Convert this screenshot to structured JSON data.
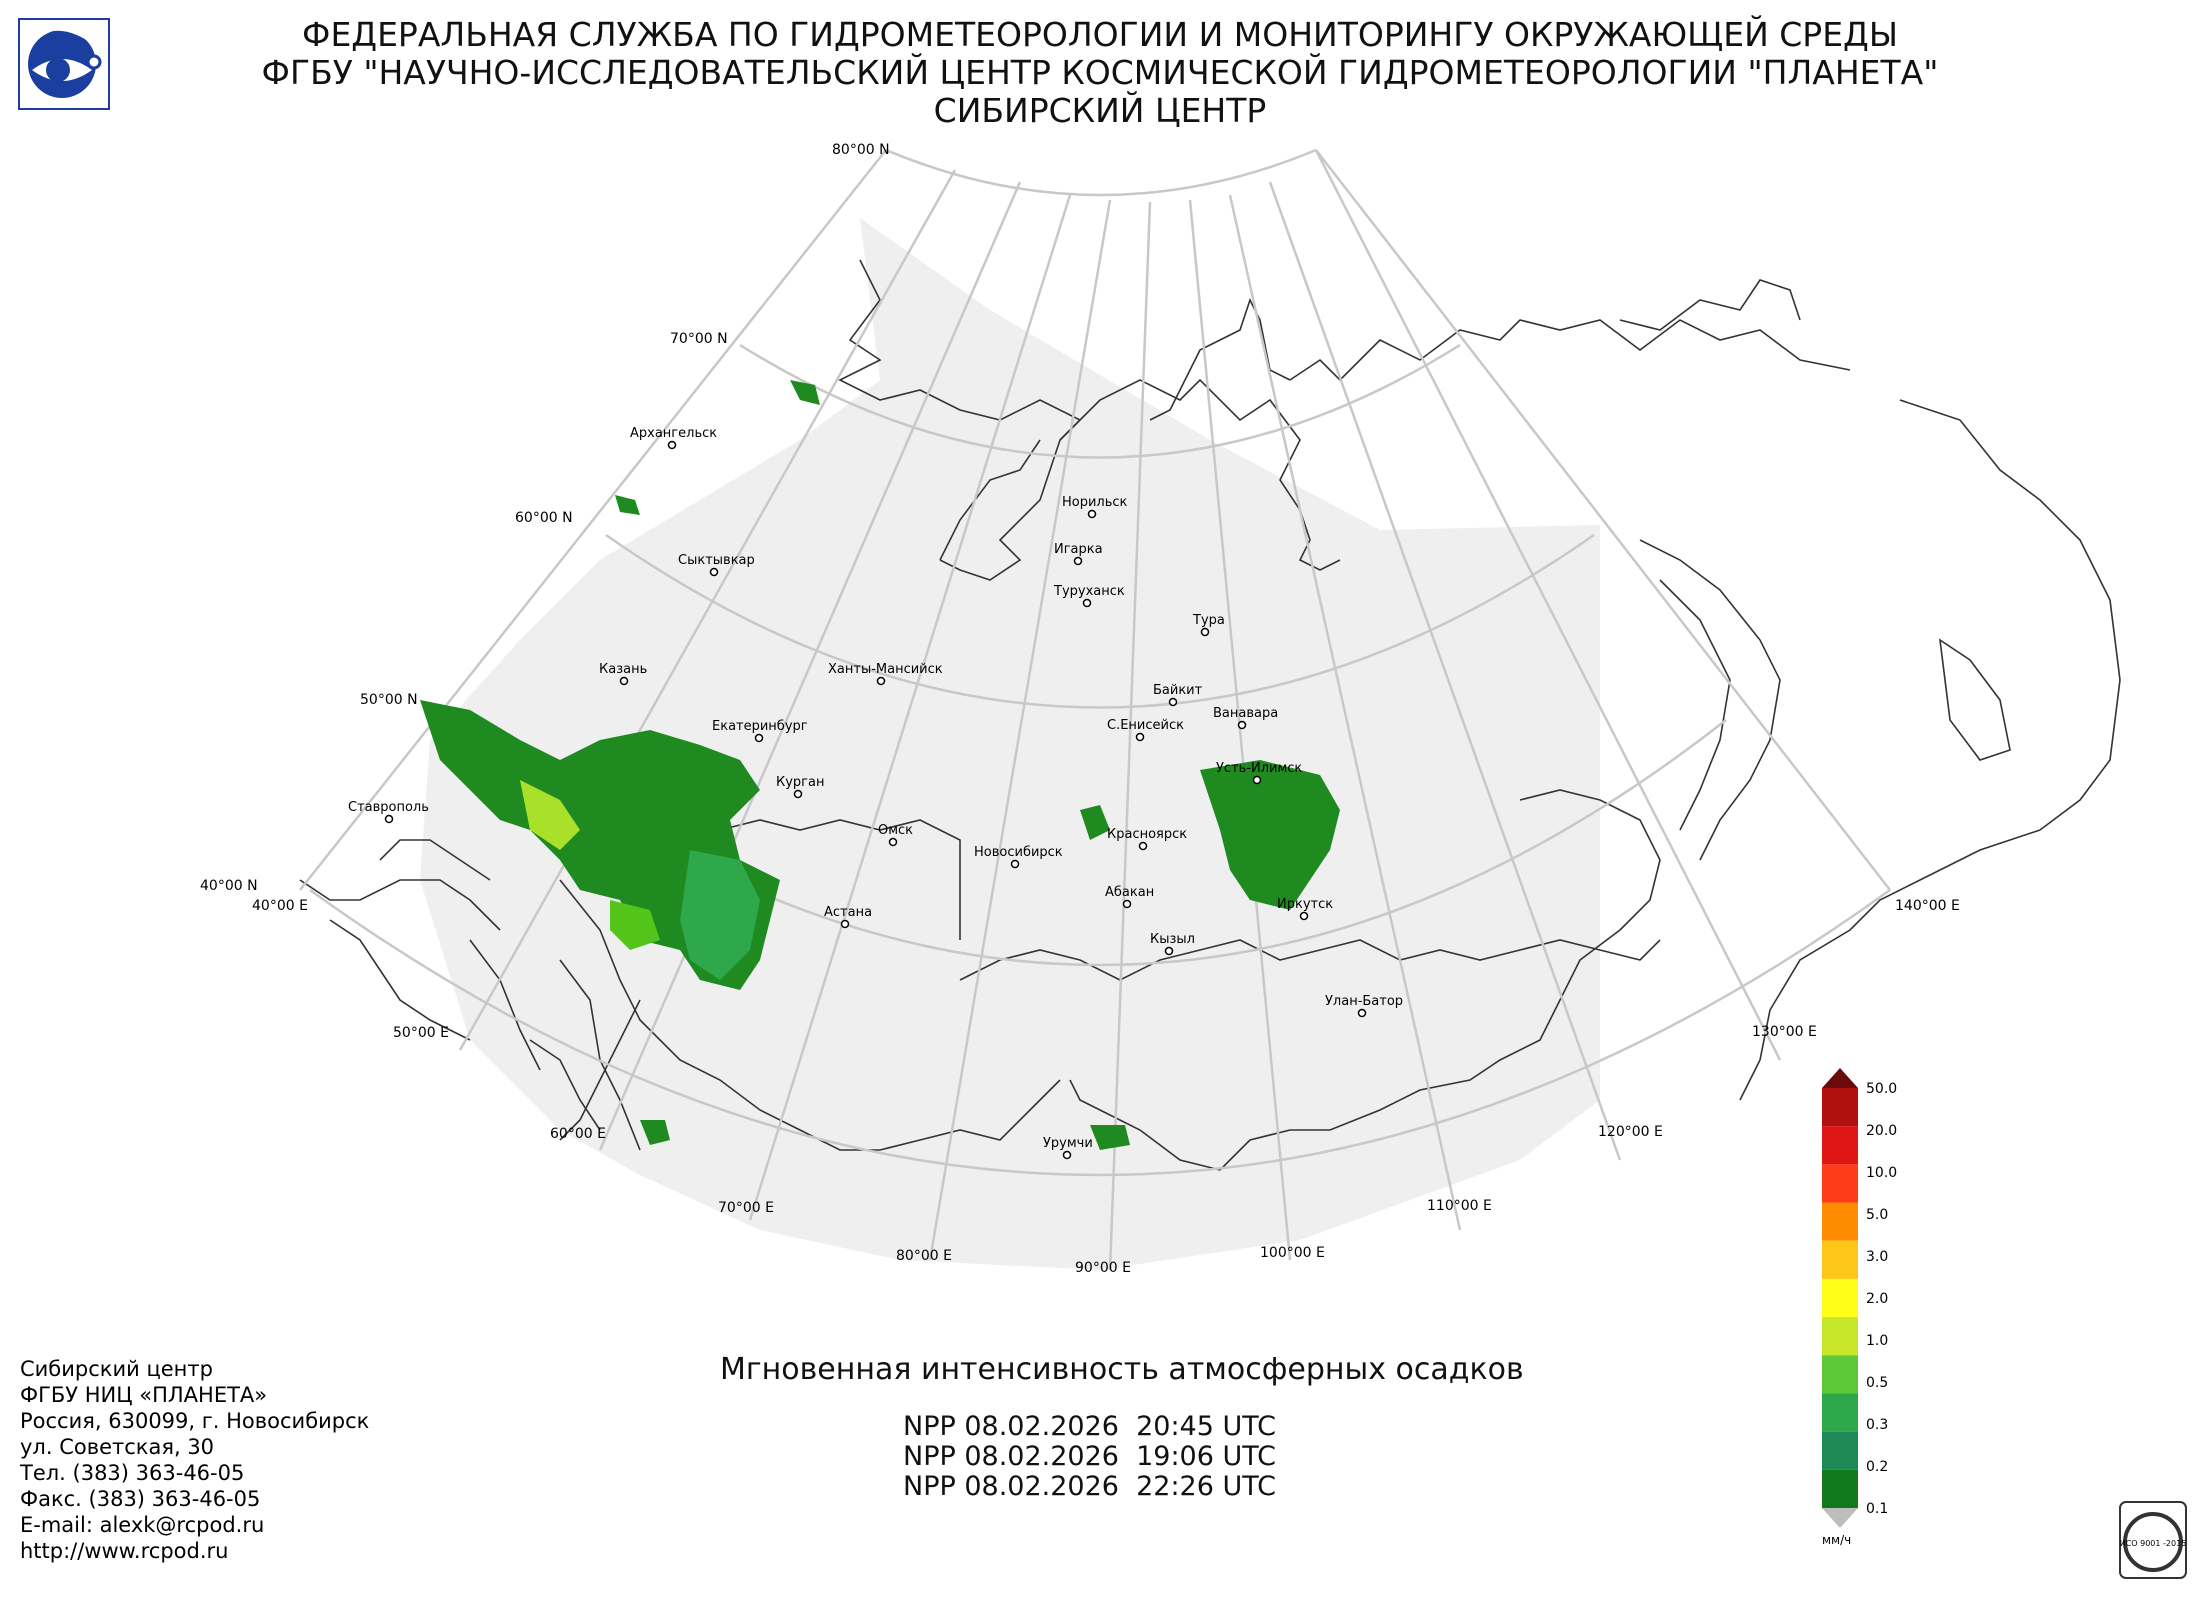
{
  "header": {
    "line1": "ФЕДЕРАЛЬНАЯ СЛУЖБА ПО ГИДРОМЕТЕОРОЛОГИИ И МОНИТОРИНГУ ОКРУЖАЮЩЕЙ СРЕДЫ",
    "line2": "ФГБУ \"НАУЧНО-ИССЛЕДОВАТЕЛЬСКИЙ ЦЕНТР КОСМИЧЕСКОЙ ГИДРОМЕТЕОРОЛОГИИ \"ПЛАНЕТА\"",
    "line3": "СИБИРСКИЙ ЦЕНТР"
  },
  "map": {
    "lat_labels": [
      "80°00 N",
      "70°00 N",
      "60°00 N",
      "50°00 N",
      "40°00 N"
    ],
    "lon_labels": [
      "40°00 E",
      "50°00 E",
      "60°00 E",
      "70°00 E",
      "80°00 E",
      "90°00 E",
      "100°00 E",
      "110°00 E",
      "120°00 E",
      "130°00 E",
      "140°00 E"
    ],
    "cities": [
      {
        "name": "Архангельск"
      },
      {
        "name": "Сыктывкар"
      },
      {
        "name": "Казань"
      },
      {
        "name": "Екатеринбург"
      },
      {
        "name": "Ханты-Мансийск"
      },
      {
        "name": "Курган"
      },
      {
        "name": "Ставрополь"
      },
      {
        "name": "Омск"
      },
      {
        "name": "Астана"
      },
      {
        "name": "Новосибирск"
      },
      {
        "name": "Норильск"
      },
      {
        "name": "Игарка"
      },
      {
        "name": "Туруханск"
      },
      {
        "name": "Тура"
      },
      {
        "name": "Байкит"
      },
      {
        "name": "С.Енисейск"
      },
      {
        "name": "Ванавара"
      },
      {
        "name": "Усть-Илимск"
      },
      {
        "name": "Красноярск"
      },
      {
        "name": "Абакан"
      },
      {
        "name": "Кызыл"
      },
      {
        "name": "Иркутск"
      },
      {
        "name": "Улан-Батор"
      },
      {
        "name": "Урумчи"
      }
    ],
    "colors": {
      "graticule": "#c8c8c8",
      "coverage": "#efefef",
      "borders": "#333333",
      "precip_low": "#1f8a1f",
      "precip_mid": "#52c41a",
      "precip_high": "#a8e02a"
    }
  },
  "product": {
    "title": "Мгновенная интенсивность атмосферных осадков",
    "passes": [
      "NPP 08.02.2026  20:45 UTC",
      "NPP 08.02.2026  19:06 UTC",
      "NPP 08.02.2026  22:26 UTC"
    ]
  },
  "contacts": [
    "Сибирский центр",
    "ФГБУ НИЦ «ПЛАНЕТА»",
    "Россия, 630099, г. Новосибирск",
    "ул. Советская, 30",
    "Тел. (383) 363-46-05",
    "Факс. (383) 363-46-05",
    "E-mail: alexk@rcpod.ru",
    "http://www.rcpod.ru"
  ],
  "legend": {
    "unit": "мм/ч",
    "ticks": [
      "50.0",
      "20.0",
      "10.0",
      "5.0",
      "3.0",
      "2.0",
      "1.0",
      "0.5",
      "0.3",
      "0.2",
      "0.1"
    ],
    "colors": [
      "#b01010",
      "#e01515",
      "#ff3b1a",
      "#ff8c00",
      "#ffc61a",
      "#ffff1a",
      "#c8e62a",
      "#5cc83a",
      "#2ea84a",
      "#1f8a55",
      "#117a1a"
    ],
    "over_color": "#6b0a0a",
    "under_color": "#bdbdbd"
  },
  "iso": {
    "text": "ИСО 9001 -2015"
  }
}
